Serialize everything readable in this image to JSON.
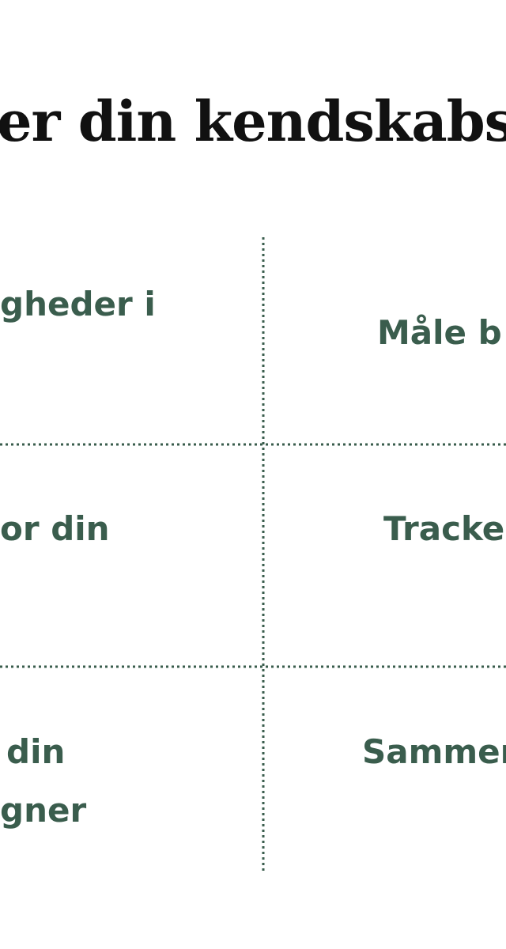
{
  "header": {
    "title": "er din kendskabs"
  },
  "cells": [
    {
      "lines": [
        "gheder i"
      ]
    },
    {
      "lines": [
        "Måle b"
      ]
    },
    {
      "lines": [
        "or din"
      ]
    },
    {
      "lines": [
        "Tracke"
      ]
    },
    {
      "lines": [
        "din",
        "gner"
      ]
    },
    {
      "lines": [
        "Sammen"
      ]
    }
  ]
}
